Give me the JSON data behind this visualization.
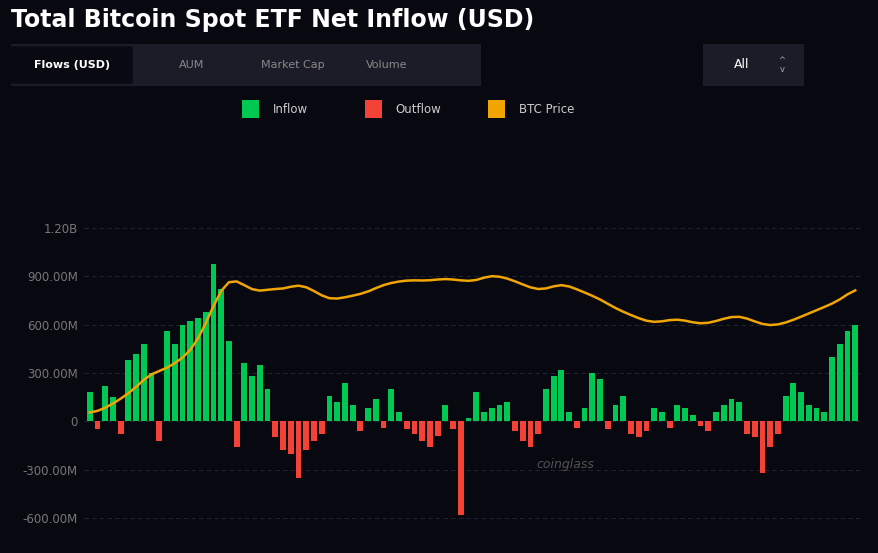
{
  "title": "Total Bitcoin Spot ETF Net Inflow (USD)",
  "background_color": "#080810",
  "plot_bg_color": "#080810",
  "title_color": "#ffffff",
  "title_fontsize": 17,
  "inflow_color": "#00c853",
  "outflow_color": "#f44336",
  "btc_color": "#f0a500",
  "grid_color": "#2a2a3a",
  "tick_color": "#777777",
  "ylim": [
    -680000000,
    1380000000
  ],
  "yticks": [
    -600000000,
    -300000000,
    0,
    300000000,
    600000000,
    900000000,
    1200000000
  ],
  "ytick_labels": [
    "-600.00M",
    "-300.00M",
    "0",
    "300.00M",
    "600.00M",
    "900.00M",
    "1.20B"
  ],
  "tab_labels": [
    "Flows (USD)",
    "AUM",
    "Market Cap",
    "Volume"
  ],
  "bar_values": [
    180000000,
    -50000000,
    220000000,
    150000000,
    -80000000,
    380000000,
    420000000,
    480000000,
    300000000,
    -120000000,
    560000000,
    480000000,
    600000000,
    620000000,
    640000000,
    680000000,
    980000000,
    820000000,
    500000000,
    -160000000,
    360000000,
    280000000,
    350000000,
    200000000,
    -100000000,
    -180000000,
    -200000000,
    -350000000,
    -180000000,
    -120000000,
    -80000000,
    160000000,
    120000000,
    240000000,
    100000000,
    -60000000,
    80000000,
    140000000,
    -40000000,
    200000000,
    60000000,
    -50000000,
    -80000000,
    -120000000,
    -160000000,
    -90000000,
    100000000,
    -50000000,
    -580000000,
    20000000,
    180000000,
    60000000,
    80000000,
    100000000,
    120000000,
    -60000000,
    -120000000,
    -160000000,
    -80000000,
    200000000,
    280000000,
    320000000,
    60000000,
    -40000000,
    80000000,
    300000000,
    260000000,
    -50000000,
    100000000,
    160000000,
    -80000000,
    -100000000,
    -60000000,
    80000000,
    60000000,
    -40000000,
    100000000,
    80000000,
    40000000,
    -30000000,
    -60000000,
    60000000,
    100000000,
    140000000,
    120000000,
    -80000000,
    -100000000,
    -320000000,
    -160000000,
    -80000000,
    160000000,
    240000000,
    180000000,
    100000000,
    80000000,
    60000000,
    400000000,
    480000000,
    560000000,
    600000000
  ],
  "btc_price_y": [
    50000000,
    60000000,
    80000000,
    110000000,
    140000000,
    170000000,
    210000000,
    260000000,
    310000000,
    305000000,
    330000000,
    360000000,
    390000000,
    430000000,
    500000000,
    600000000,
    720000000,
    830000000,
    900000000,
    880000000,
    845000000,
    810000000,
    800000000,
    820000000,
    830000000,
    810000000,
    840000000,
    855000000,
    840000000,
    810000000,
    780000000,
    750000000,
    760000000,
    770000000,
    780000000,
    790000000,
    800000000,
    830000000,
    850000000,
    860000000,
    870000000,
    875000000,
    880000000,
    870000000,
    875000000,
    880000000,
    890000000,
    880000000,
    875000000,
    870000000,
    865000000,
    900000000,
    910000000,
    900000000,
    890000000,
    870000000,
    850000000,
    830000000,
    810000000,
    820000000,
    840000000,
    860000000,
    840000000,
    820000000,
    800000000,
    780000000,
    760000000,
    730000000,
    700000000,
    680000000,
    660000000,
    640000000,
    620000000,
    610000000,
    620000000,
    630000000,
    640000000,
    625000000,
    615000000,
    600000000,
    610000000,
    620000000,
    640000000,
    650000000,
    660000000,
    640000000,
    620000000,
    600000000,
    590000000,
    600000000,
    610000000,
    630000000,
    650000000,
    670000000,
    690000000,
    710000000,
    730000000,
    750000000,
    790000000,
    830000000
  ]
}
